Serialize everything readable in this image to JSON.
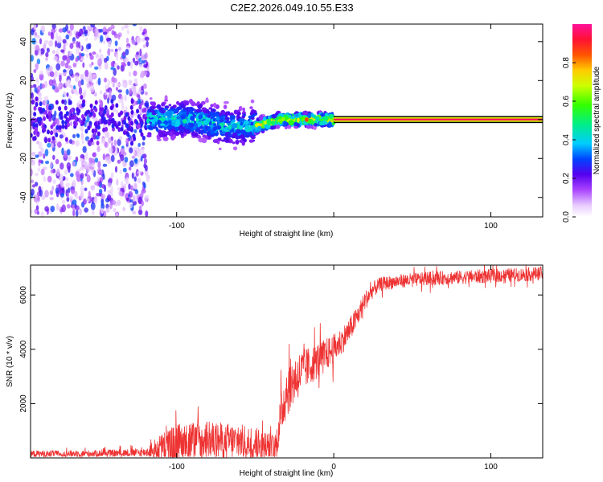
{
  "title": "C2E2.2026.049.10.55.E33",
  "colors": {
    "snr_line": "#ee3333",
    "background": "#ffffff",
    "frame": "#000000"
  },
  "chart_data": [
    {
      "type": "heatmap",
      "name": "spectrogram",
      "xlabel": "Height of straight line (km)",
      "ylabel": "Frequency (Hz)",
      "xlim": [
        -193,
        133
      ],
      "ylim": [
        -50,
        49
      ],
      "xticks": [
        -100,
        0,
        100
      ],
      "xtick_labels": [
        "-100",
        "",
        "100"
      ],
      "yticks": [
        -40,
        -20,
        0,
        20,
        40
      ],
      "ytick_labels": [
        "-40",
        "-20",
        "0",
        "20",
        "40"
      ],
      "colorbar": {
        "label": "Normalized spectral amplitude",
        "range": [
          0,
          1
        ],
        "ticks": [
          0.0,
          0.2,
          0.4,
          0.6,
          0.8
        ],
        "tick_labels": [
          "0.0",
          "0.2",
          "0.4",
          "0.6",
          "0.8"
        ],
        "colormap": "white-purple-blue-cyan-green-yellow-red-magenta"
      },
      "regions": [
        {
          "x_range": [
            -193,
            -118
          ],
          "freq_center": 0,
          "freq_spread": 49,
          "amplitude": 0.08,
          "description": "scattered low-amplitude noise"
        },
        {
          "x_range": [
            -118,
            -50
          ],
          "freq_center": 0,
          "freq_spread": 8,
          "amplitude": 0.35,
          "description": "broadening signal band"
        },
        {
          "x_range": [
            -50,
            0
          ],
          "freq_center": 0,
          "freq_spread": 3,
          "amplitude": 0.7,
          "description": "narrowing signal"
        },
        {
          "x_range": [
            0,
            133
          ],
          "freq_center": 0,
          "freq_spread": 1,
          "amplitude": 0.95,
          "description": "steady carrier line"
        }
      ]
    },
    {
      "type": "line",
      "name": "snr",
      "xlabel": "Height of straight line (km)",
      "ylabel": "SNR (10 * v/v)",
      "xlim": [
        -193,
        133
      ],
      "ylim": [
        0,
        7100
      ],
      "xticks": [
        -100,
        0,
        100
      ],
      "xtick_labels": [
        "-100",
        "0",
        "100"
      ],
      "yticks": [
        2000,
        4000,
        6000
      ],
      "ytick_labels": [
        "2000",
        "4000",
        "6000"
      ],
      "x": [
        -193,
        -150,
        -120,
        -110,
        -100,
        -80,
        -60,
        -45,
        -37,
        -33,
        -30,
        -25,
        -20,
        -15,
        -10,
        -5,
        0,
        5,
        10,
        15,
        20,
        25,
        30,
        40,
        60,
        80,
        100,
        120,
        133
      ],
      "y": [
        150,
        160,
        200,
        400,
        550,
        650,
        600,
        450,
        350,
        1800,
        2500,
        2900,
        3200,
        3400,
        3600,
        3800,
        4000,
        4300,
        4700,
        5200,
        5800,
        6200,
        6400,
        6500,
        6600,
        6650,
        6700,
        6750,
        6800
      ],
      "noise_amplitude": [
        120,
        120,
        150,
        500,
        700,
        700,
        650,
        600,
        500,
        900,
        1000,
        900,
        800,
        700,
        650,
        600,
        550,
        500,
        450,
        400,
        350,
        300,
        250,
        250,
        250,
        250,
        250,
        250,
        250
      ]
    }
  ]
}
